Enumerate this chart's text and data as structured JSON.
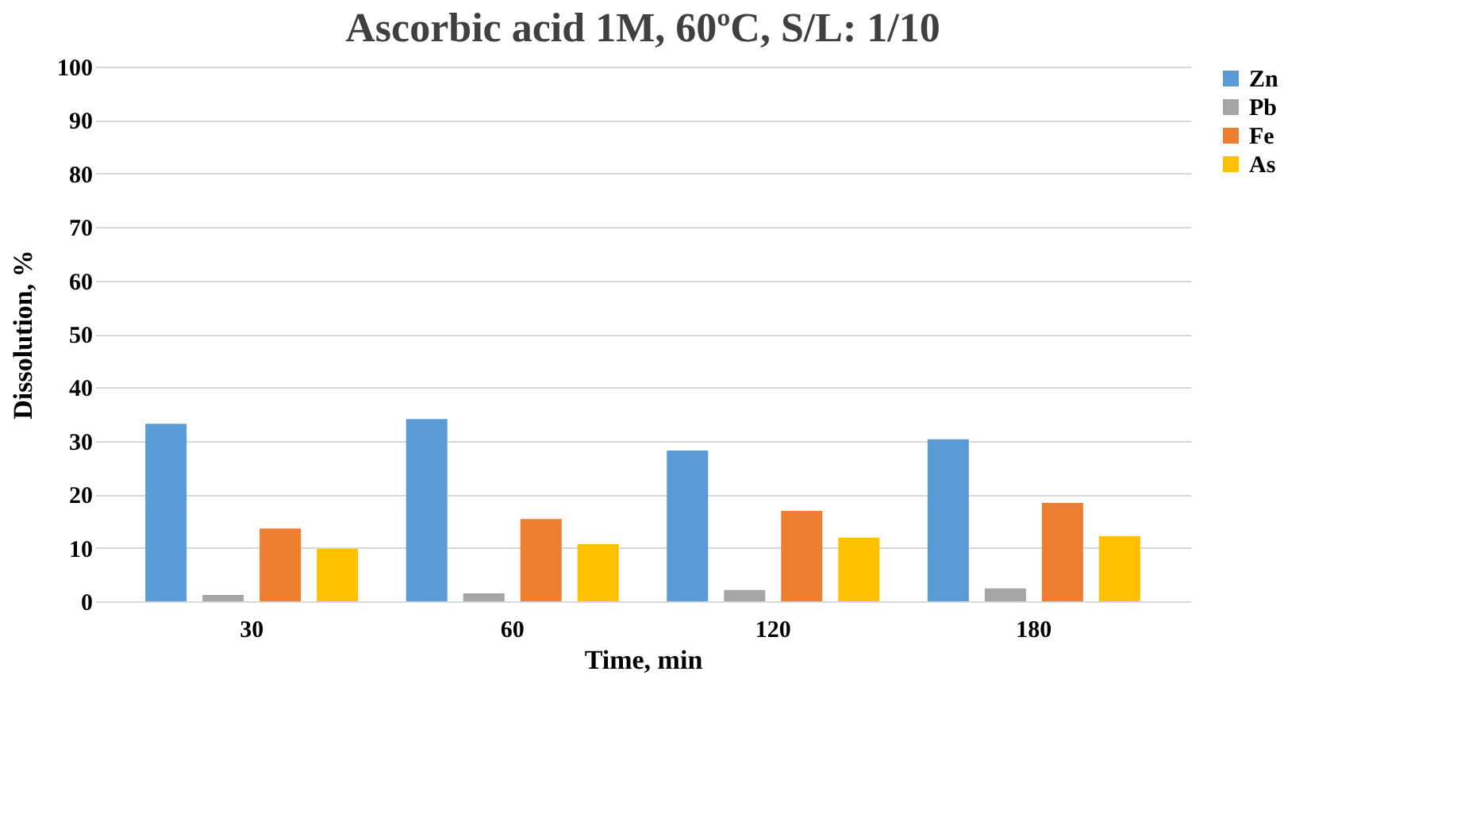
{
  "chart_data": {
    "type": "bar",
    "title": "Ascorbic acid 1M, 60ºC, S/L: 1/10",
    "xlabel": "Time, min",
    "ylabel": "Dissolution, %",
    "categories": [
      "30",
      "60",
      "120",
      "180"
    ],
    "series": [
      {
        "name": "Zn",
        "color": "#5b9bd5",
        "values": [
          33.2,
          34.1,
          28.2,
          30.3
        ]
      },
      {
        "name": "Pb",
        "color": "#a5a5a5",
        "values": [
          1.2,
          1.5,
          2.1,
          2.4
        ]
      },
      {
        "name": "Fe",
        "color": "#ed7d31",
        "values": [
          13.6,
          15.4,
          16.9,
          18.4
        ]
      },
      {
        "name": "As",
        "color": "#ffc000",
        "values": [
          9.8,
          10.7,
          11.9,
          12.2
        ]
      }
    ],
    "ylim": [
      0,
      100
    ],
    "yticks": [
      0,
      10,
      20,
      30,
      40,
      50,
      60,
      70,
      80,
      90,
      100
    ],
    "grid": "y",
    "legend": "right"
  }
}
